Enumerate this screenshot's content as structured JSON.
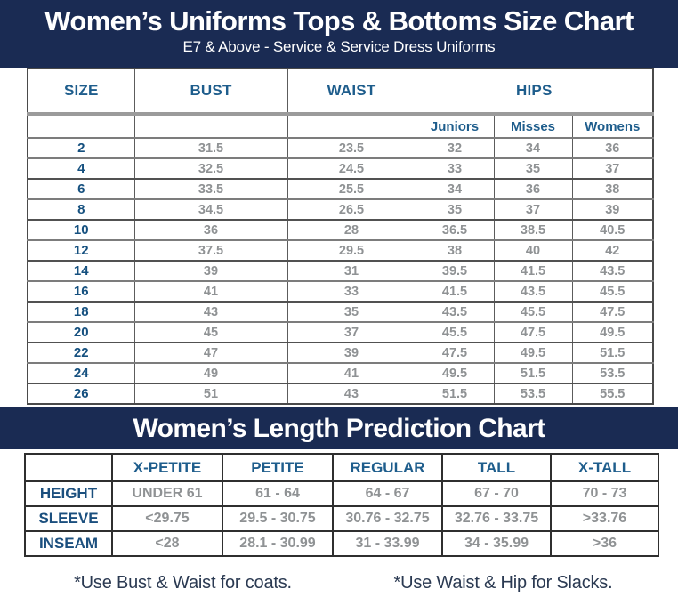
{
  "size_chart": {
    "title": "Women’s Uniforms Tops & Bottoms Size Chart",
    "subtitle": "E7 & Above - Service & Service Dress Uniforms",
    "columns": {
      "size": "SIZE",
      "bust": "BUST",
      "waist": "WAIST",
      "hips": "HIPS"
    },
    "hips_subcolumns": [
      "Juniors",
      "Misses",
      "Womens"
    ],
    "rows": [
      {
        "size": "2",
        "bust": "31.5",
        "waist": "23.5",
        "juniors": "32",
        "misses": "34",
        "womens": "36"
      },
      {
        "size": "4",
        "bust": "32.5",
        "waist": "24.5",
        "juniors": "33",
        "misses": "35",
        "womens": "37"
      },
      {
        "size": "6",
        "bust": "33.5",
        "waist": "25.5",
        "juniors": "34",
        "misses": "36",
        "womens": "38"
      },
      {
        "size": "8",
        "bust": "34.5",
        "waist": "26.5",
        "juniors": "35",
        "misses": "37",
        "womens": "39"
      },
      {
        "size": "10",
        "bust": "36",
        "waist": "28",
        "juniors": "36.5",
        "misses": "38.5",
        "womens": "40.5"
      },
      {
        "size": "12",
        "bust": "37.5",
        "waist": "29.5",
        "juniors": "38",
        "misses": "40",
        "womens": "42"
      },
      {
        "size": "14",
        "bust": "39",
        "waist": "31",
        "juniors": "39.5",
        "misses": "41.5",
        "womens": "43.5"
      },
      {
        "size": "16",
        "bust": "41",
        "waist": "33",
        "juniors": "41.5",
        "misses": "43.5",
        "womens": "45.5"
      },
      {
        "size": "18",
        "bust": "43",
        "waist": "35",
        "juniors": "43.5",
        "misses": "45.5",
        "womens": "47.5"
      },
      {
        "size": "20",
        "bust": "45",
        "waist": "37",
        "juniors": "45.5",
        "misses": "47.5",
        "womens": "49.5"
      },
      {
        "size": "22",
        "bust": "47",
        "waist": "39",
        "juniors": "47.5",
        "misses": "49.5",
        "womens": "51.5"
      },
      {
        "size": "24",
        "bust": "49",
        "waist": "41",
        "juniors": "49.5",
        "misses": "51.5",
        "womens": "53.5"
      },
      {
        "size": "26",
        "bust": "51",
        "waist": "43",
        "juniors": "51.5",
        "misses": "53.5",
        "womens": "55.5"
      }
    ]
  },
  "length_chart": {
    "title": "Women’s Length Prediction Chart",
    "columns": [
      "X-PETITE",
      "PETITE",
      "REGULAR",
      "TALL",
      "X-TALL"
    ],
    "rows": [
      {
        "label": "HEIGHT",
        "values": [
          "UNDER 61",
          "61 - 64",
          "64 - 67",
          "67 - 70",
          "70 - 73"
        ]
      },
      {
        "label": "SLEEVE",
        "values": [
          "<29.75",
          "29.5 - 30.75",
          "30.76 - 32.75",
          "32.76 - 33.75",
          ">33.76"
        ]
      },
      {
        "label": "INSEAM",
        "values": [
          "<28",
          "28.1 - 30.99",
          "31 - 33.99",
          "34 - 35.99",
          ">36"
        ]
      }
    ]
  },
  "footnotes": [
    "*Use Bust & Waist for coats.",
    "*Use Waist & Hip for Slacks."
  ],
  "colors": {
    "banner_navy": "#1a2b53",
    "header_blue": "#1e5d8c",
    "size_value_blue": "#15507f",
    "data_gray": "#8f9294",
    "footnote_navy": "#2b3a52"
  }
}
